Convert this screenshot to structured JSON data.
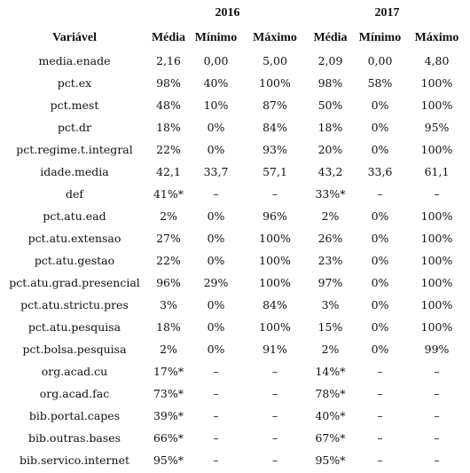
{
  "table": {
    "years": [
      "2016",
      "2017"
    ],
    "columns": [
      "Variável",
      "Média",
      "Mínimo",
      "Máximo",
      "Média",
      "Mínimo",
      "Máximo"
    ],
    "rows": [
      [
        "media.enade",
        "2,16",
        "0,00",
        "5,00",
        "2,09",
        "0,00",
        "4,80"
      ],
      [
        "pct.ex",
        "98%",
        "40%",
        "100%",
        "98%",
        "58%",
        "100%"
      ],
      [
        "pct.mest",
        "48%",
        "10%",
        "87%",
        "50%",
        "0%",
        "100%"
      ],
      [
        "pct.dr",
        "18%",
        "0%",
        "84%",
        "18%",
        "0%",
        "95%"
      ],
      [
        "pct.regime.t.integral",
        "22%",
        "0%",
        "93%",
        "20%",
        "0%",
        "100%"
      ],
      [
        "idade.media",
        "42,1",
        "33,7",
        "57,1",
        "43,2",
        "33,6",
        "61,1"
      ],
      [
        "def",
        "41%*",
        "–",
        "–",
        "33%*",
        "–",
        "–"
      ],
      [
        "pct.atu.ead",
        "2%",
        "0%",
        "96%",
        "2%",
        "0%",
        "100%"
      ],
      [
        "pct.atu.extensao",
        "27%",
        "0%",
        "100%",
        "26%",
        "0%",
        "100%"
      ],
      [
        "pct.atu.gestao",
        "22%",
        "0%",
        "100%",
        "23%",
        "0%",
        "100%"
      ],
      [
        "pct.atu.grad.presencial",
        "96%",
        "29%",
        "100%",
        "97%",
        "0%",
        "100%"
      ],
      [
        "pct.atu.strictu.pres",
        "3%",
        "0%",
        "84%",
        "3%",
        "0%",
        "100%"
      ],
      [
        "pct.atu.pesquisa",
        "18%",
        "0%",
        "100%",
        "15%",
        "0%",
        "100%"
      ],
      [
        "pct.bolsa.pesquisa",
        "2%",
        "0%",
        "91%",
        "2%",
        "0%",
        "99%"
      ],
      [
        "org.acad.cu",
        "17%*",
        "–",
        "–",
        "14%*",
        "–",
        "–"
      ],
      [
        "org.acad.fac",
        "73%*",
        "–",
        "–",
        "78%*",
        "–",
        "–"
      ],
      [
        "bib.portal.capes",
        "39%*",
        "–",
        "–",
        "40%*",
        "–",
        "–"
      ],
      [
        "bib.outras.bases",
        "66%*",
        "–",
        "–",
        "67%*",
        "–",
        "–"
      ],
      [
        "bib.servico.internet",
        "95%*",
        "–",
        "–",
        "95%*",
        "–",
        "–"
      ]
    ]
  }
}
